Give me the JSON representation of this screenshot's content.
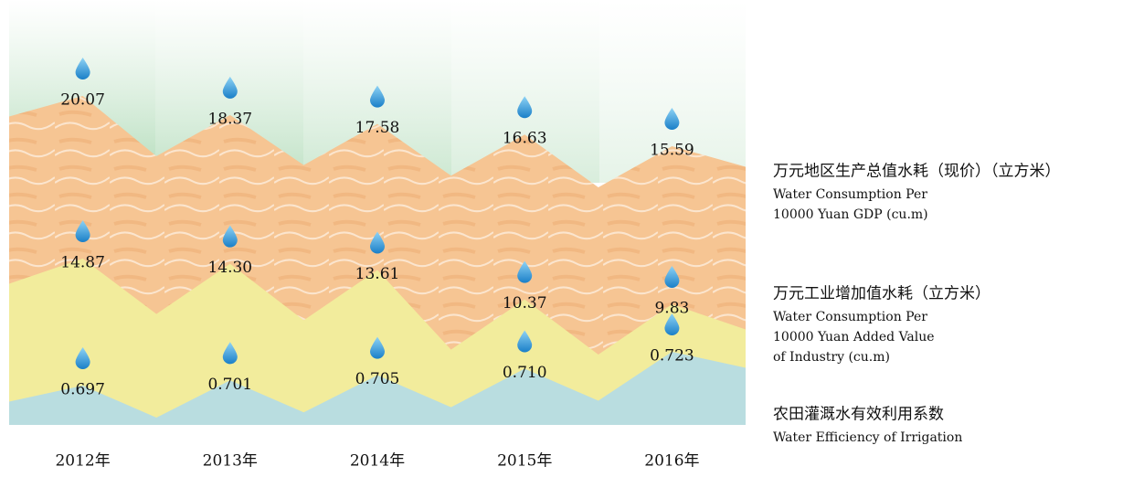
{
  "chart_data": {
    "type": "layered-band",
    "categories": [
      "2012年",
      "2013年",
      "2014年",
      "2015年",
      "2016年"
    ],
    "series": [
      {
        "name": "万元地区生产总值水耗（现价）（立方米）",
        "name_en": [
          "Water Consumption Per",
          "10000 Yuan GDP (cu.m)"
        ],
        "color": "#f6c593",
        "values": [
          20.07,
          18.37,
          17.58,
          16.63,
          15.59
        ],
        "value_labels": [
          "20.07",
          "18.37",
          "17.58",
          "16.63",
          "15.59"
        ]
      },
      {
        "name": "万元工业增加值水耗（立方米）",
        "name_en": [
          "Water Consumption Per",
          "10000 Yuan  Added Value",
          "of Industry (cu.m)"
        ],
        "color": "#f2ec9c",
        "values": [
          14.87,
          14.3,
          13.61,
          10.37,
          9.83
        ],
        "value_labels": [
          "14.87",
          "14.30",
          "13.61",
          "10.37",
          "9.83"
        ]
      },
      {
        "name": "农田灌溉水有效利用系数",
        "name_en": [
          "Water Efficiency of Irrigation"
        ],
        "color": "#b9dde0",
        "values": [
          0.697,
          0.701,
          0.705,
          0.71,
          0.723
        ],
        "value_labels": [
          "0.697",
          "0.701",
          "0.705",
          "0.710",
          "0.723"
        ]
      }
    ]
  }
}
